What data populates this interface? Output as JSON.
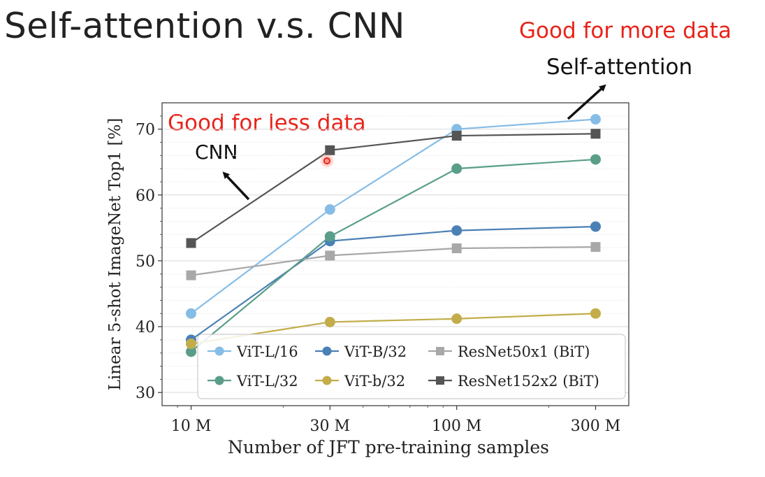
{
  "slide": {
    "title": "Self-attention v.s. CNN"
  },
  "annotations": {
    "more_data": "Good for more data",
    "self_attention": "Self-attention",
    "less_data": "Good for less data",
    "cnn": "CNN"
  },
  "colors": {
    "accent_red": "#e8231a",
    "vit_l16": "#86bde6",
    "vit_b32": "#4a80b5",
    "resnet50": "#a8a8a8",
    "vit_l32": "#5a9e8a",
    "vit_b32_small": "#c2ad4a",
    "resnet152": "#555555"
  },
  "chart_data": {
    "type": "line",
    "title": "",
    "xlabel": "Number of JFT pre-training samples",
    "ylabel": "Linear 5-shot ImageNet Top1 [%]",
    "x_scale": "log",
    "categories": [
      "10 M",
      "30 M",
      "100 M",
      "300 M"
    ],
    "x": [
      9,
      30,
      90,
      300
    ],
    "ylim": [
      28,
      74
    ],
    "yticks": [
      30,
      40,
      50,
      60,
      70
    ],
    "grid": true,
    "legend": {
      "placement": "lower-right",
      "columns": 3
    },
    "series": [
      {
        "name": "ViT-L/16",
        "color": "#86bde6",
        "marker": "circle",
        "values": [
          42,
          57.8,
          70,
          71.5
        ]
      },
      {
        "name": "ViT-B/32",
        "color": "#4a80b5",
        "marker": "circle",
        "values": [
          38,
          53,
          54.6,
          55.2
        ]
      },
      {
        "name": "ResNet50x1 (BiT)",
        "color": "#a8a8a8",
        "marker": "square",
        "values": [
          47.8,
          50.8,
          51.9,
          52.1
        ]
      },
      {
        "name": "ViT-L/32",
        "color": "#5a9e8a",
        "marker": "circle",
        "values": [
          36.2,
          53.7,
          64,
          65.4
        ]
      },
      {
        "name": "ViT-b/32",
        "color": "#c2ad4a",
        "marker": "circle",
        "values": [
          37.4,
          40.7,
          41.2,
          42
        ]
      },
      {
        "name": "ResNet152x2 (BiT)",
        "color": "#555555",
        "marker": "square",
        "values": [
          52.7,
          66.8,
          69,
          69.3
        ]
      }
    ]
  }
}
